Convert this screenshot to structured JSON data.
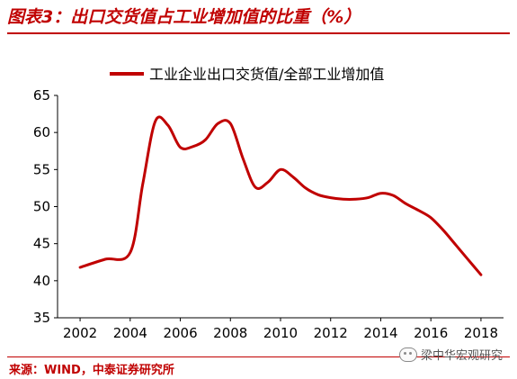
{
  "figure": {
    "title": "图表3：出口交货值占工业增加值的比重（%）",
    "source": "来源：WIND，中泰证券研究所",
    "watermark": "梁中华宏观研究",
    "watermark_icon": "wechat-icon"
  },
  "chart_data": {
    "type": "line",
    "title": "",
    "xlabel": "",
    "ylabel": "",
    "x": [
      2002,
      2003,
      2004,
      2004.5,
      2005,
      2005.5,
      2006,
      2006.5,
      2007,
      2007.5,
      2008,
      2008.5,
      2009,
      2009.5,
      2010,
      2010.5,
      2011,
      2011.5,
      2012,
      2012.5,
      2013,
      2013.5,
      2014,
      2014.5,
      2015,
      2015.5,
      2016,
      2016.5,
      2017,
      2017.5,
      2018
    ],
    "series": [
      {
        "name": "工业企业出口交货值/全部工业增加值",
        "color": "#c00000",
        "values": [
          41.8,
          42.9,
          43.8,
          53.0,
          61.5,
          61.0,
          58.0,
          58.1,
          59.0,
          61.2,
          61.2,
          56.5,
          52.6,
          53.3,
          55.0,
          54.0,
          52.5,
          51.6,
          51.2,
          51.0,
          51.0,
          51.2,
          51.8,
          51.5,
          50.4,
          49.5,
          48.5,
          46.8,
          44.8,
          42.8,
          40.8
        ]
      }
    ],
    "xlim": [
      2001.1,
      2018.9
    ],
    "ylim": [
      35,
      65
    ],
    "xticks": [
      "2002",
      "2004",
      "2006",
      "2008",
      "2010",
      "2012",
      "2014",
      "2016",
      "2018"
    ],
    "xtick_values": [
      2002,
      2004,
      2006,
      2008,
      2010,
      2012,
      2014,
      2016,
      2018
    ],
    "yticks": [
      "35",
      "40",
      "45",
      "50",
      "55",
      "60",
      "65"
    ],
    "ytick_values": [
      35,
      40,
      45,
      50,
      55,
      60,
      65
    ],
    "grid": false,
    "legend_position": "top-center",
    "line_color": "#c00000"
  }
}
